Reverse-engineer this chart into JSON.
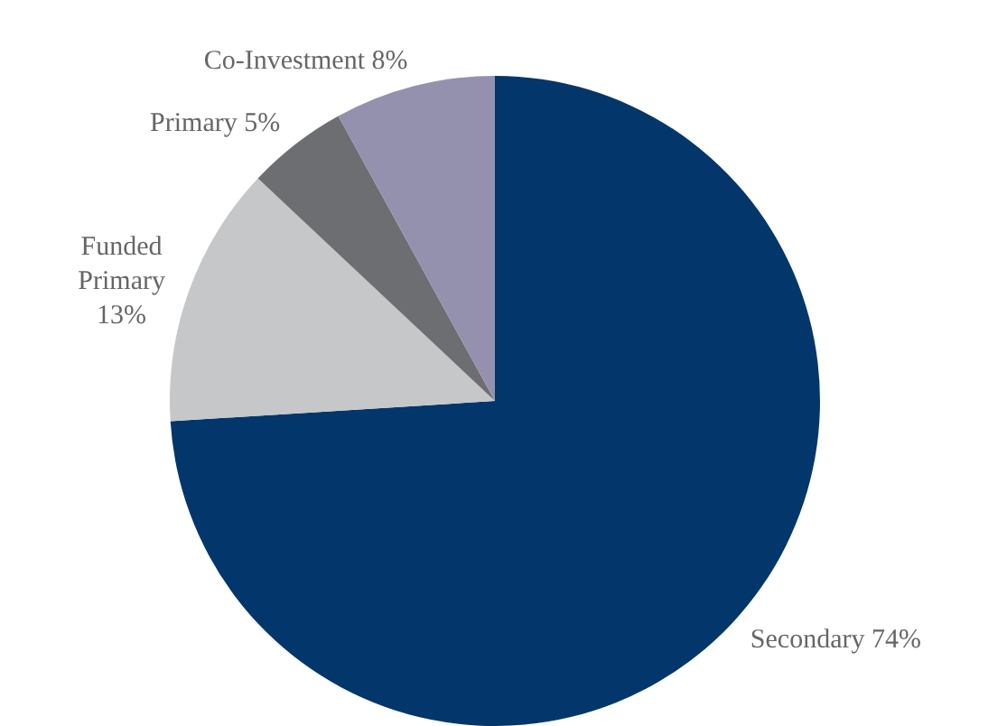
{
  "chart_data": {
    "type": "pie",
    "categories": [
      "Secondary",
      "Funded Primary",
      "Primary",
      "Co-Investment"
    ],
    "values": [
      74,
      13,
      5,
      8
    ],
    "value_labels": [
      "74%",
      "13%",
      "5%",
      "8%"
    ],
    "colors": [
      "#03366b",
      "#c6c7c9",
      "#6d6e71",
      "#9491ae"
    ],
    "legend": false
  }
}
